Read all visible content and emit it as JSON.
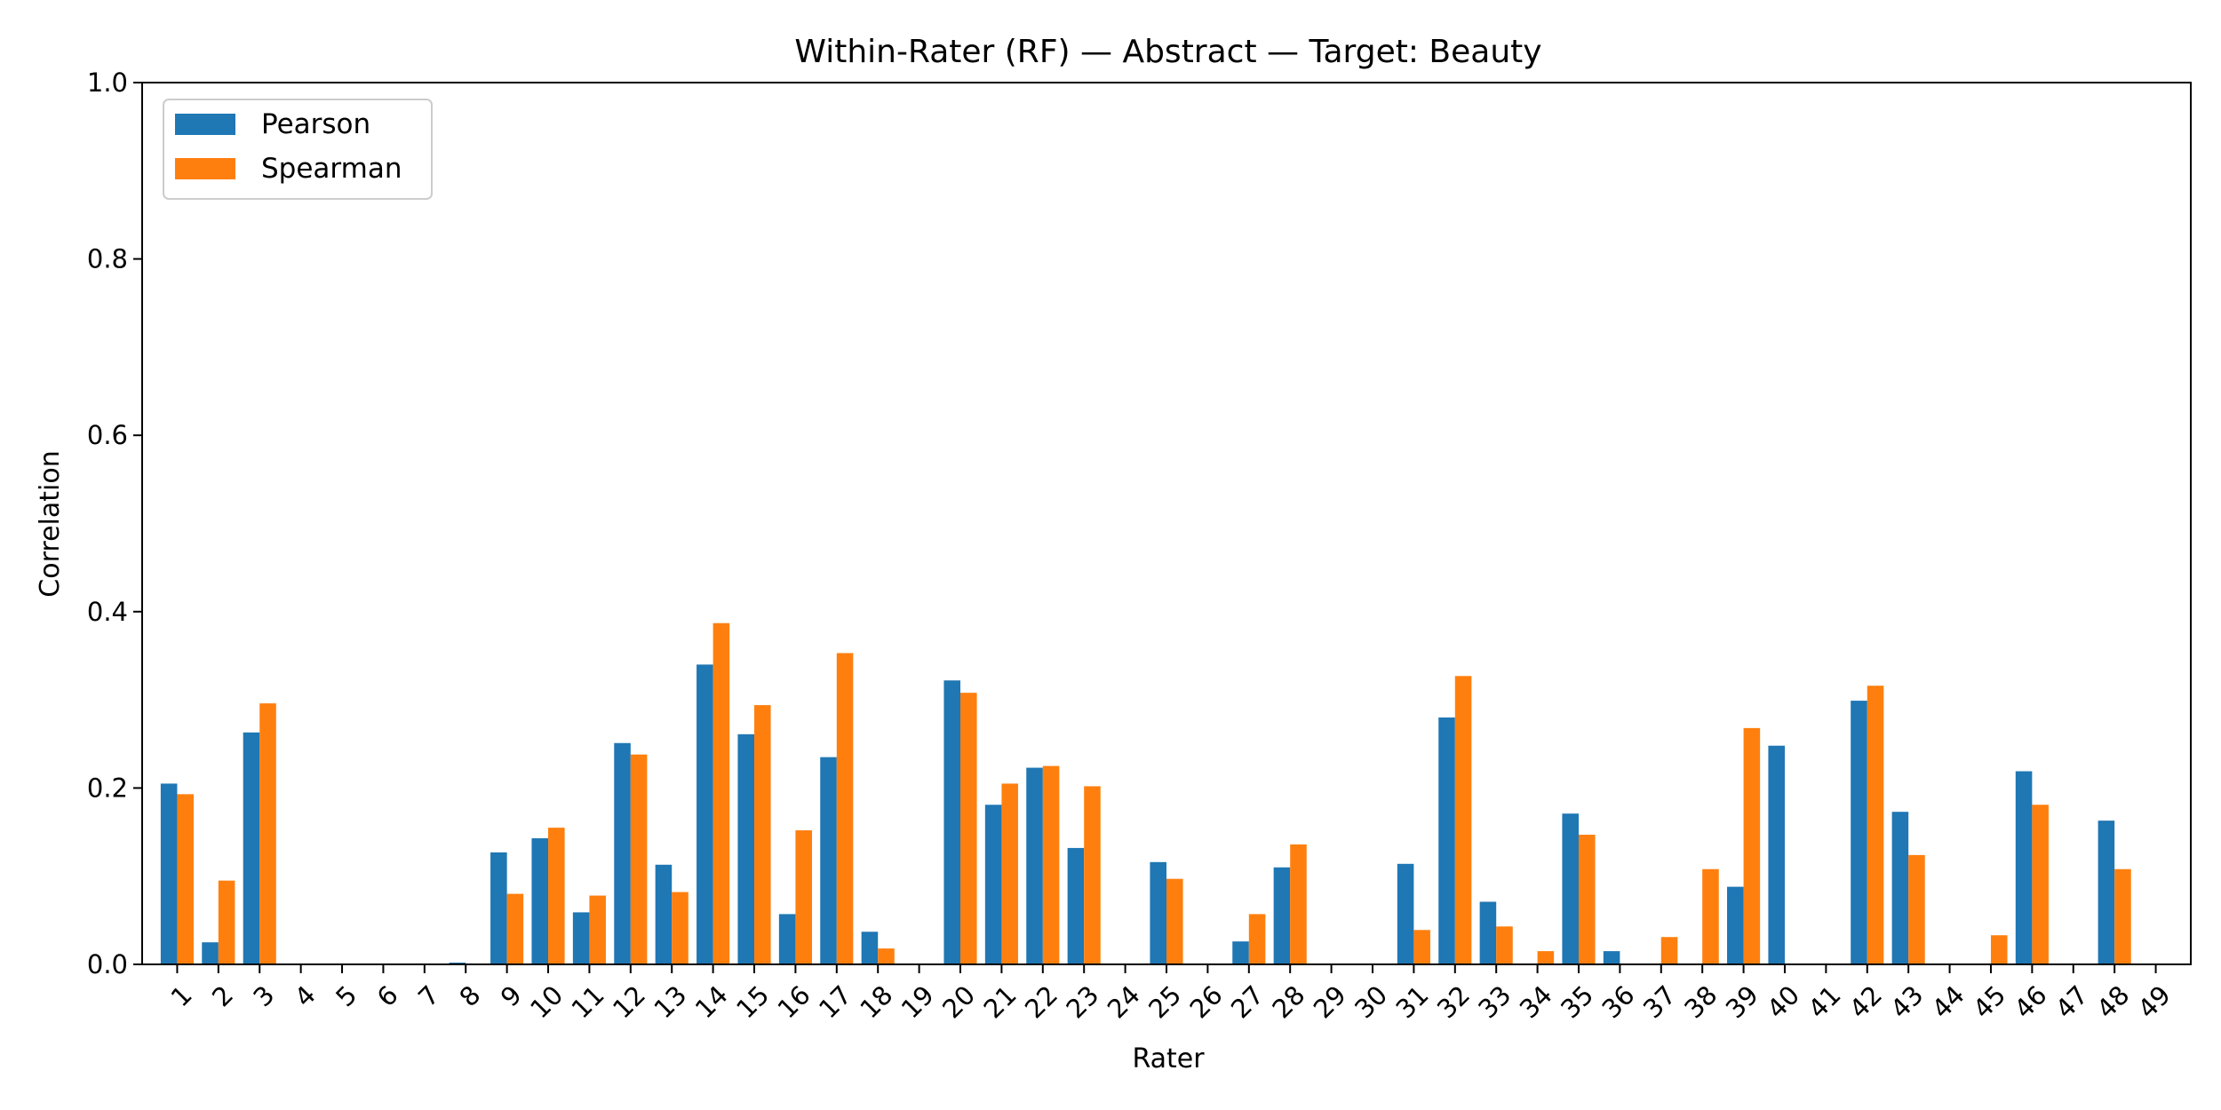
{
  "chart_data": {
    "type": "bar",
    "title": "Within-Rater (RF) — Abstract — Target: Beauty",
    "xlabel": "Rater",
    "ylabel": "Correlation",
    "ylim": [
      0,
      1.0
    ],
    "yticks": [
      "0.0",
      "0.2",
      "0.4",
      "0.6",
      "0.8",
      "1.0"
    ],
    "grid": false,
    "legend_position": "top-left",
    "categories": [
      "1",
      "2",
      "3",
      "4",
      "5",
      "6",
      "7",
      "8",
      "9",
      "10",
      "11",
      "12",
      "13",
      "14",
      "15",
      "16",
      "17",
      "18",
      "19",
      "20",
      "21",
      "22",
      "23",
      "24",
      "25",
      "26",
      "27",
      "28",
      "29",
      "30",
      "31",
      "32",
      "33",
      "34",
      "35",
      "36",
      "37",
      "38",
      "39",
      "40",
      "41",
      "42",
      "43",
      "44",
      "45",
      "46",
      "47",
      "48",
      "49"
    ],
    "series": [
      {
        "name": "Pearson",
        "color": "#1f77b4",
        "values": [
          0.205,
          0.025,
          0.263,
          0,
          0,
          0,
          0,
          0.002,
          0.127,
          0.143,
          0.059,
          0.251,
          0.113,
          0.34,
          0.261,
          0.057,
          0.235,
          0.037,
          0,
          0.322,
          0.181,
          0.223,
          0.132,
          0,
          0.116,
          0,
          0.026,
          0.11,
          0,
          0,
          0.114,
          0.28,
          0.071,
          0,
          0.171,
          0.015,
          0,
          0,
          0.088,
          0.248,
          0,
          0.299,
          0.173,
          0,
          0,
          0.219,
          0,
          0.163,
          0
        ]
      },
      {
        "name": "Spearman",
        "color": "#ff7f0e",
        "values": [
          0.193,
          0.095,
          0.296,
          0,
          0,
          0,
          0,
          0,
          0.08,
          0.155,
          0.078,
          0.238,
          0.082,
          0.387,
          0.294,
          0.152,
          0.353,
          0.018,
          0,
          0.308,
          0.205,
          0.225,
          0.202,
          0,
          0.097,
          0,
          0.057,
          0.136,
          0,
          0,
          0.039,
          0.327,
          0.043,
          0.015,
          0.147,
          0,
          0.031,
          0.108,
          0.268,
          0,
          0,
          0.316,
          0.124,
          0,
          0.033,
          0.181,
          0,
          0.108,
          0
        ]
      }
    ]
  }
}
